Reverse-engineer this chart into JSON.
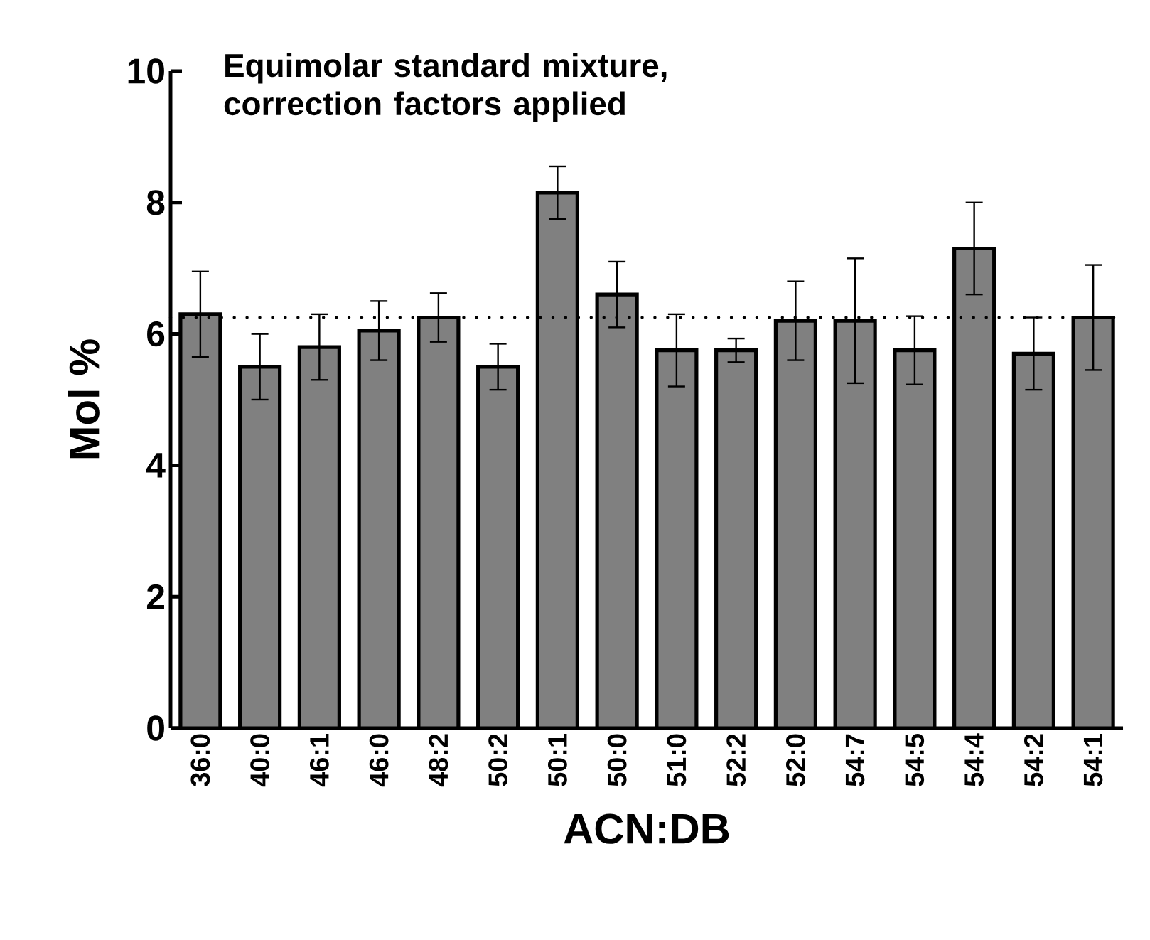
{
  "chart_data": {
    "type": "bar",
    "title": "Equimolar standard mixture,\ncorrection factors applied",
    "xlabel": "ACN:DB",
    "ylabel": "Mol %",
    "categories": [
      "36:0",
      "40:0",
      "46:1",
      "46:0",
      "48:2",
      "50:2",
      "50:1",
      "50:0",
      "51:0",
      "52:2",
      "52:0",
      "54:7",
      "54:5",
      "54:4",
      "54:2",
      "54:1"
    ],
    "values": [
      6.3,
      5.5,
      5.8,
      6.05,
      6.25,
      5.5,
      8.15,
      6.6,
      5.75,
      5.75,
      6.2,
      6.2,
      5.75,
      7.3,
      5.7,
      6.25
    ],
    "errors": [
      0.65,
      0.5,
      0.5,
      0.45,
      0.37,
      0.35,
      0.4,
      0.5,
      0.55,
      0.18,
      0.6,
      0.95,
      0.52,
      0.7,
      0.55,
      0.8
    ],
    "color": "#808080",
    "ylim": [
      0,
      10
    ],
    "yticks": [
      0,
      2,
      4,
      6,
      8,
      10
    ],
    "grid": false,
    "ref_lines": [
      {
        "axis": "y",
        "value": 6.25,
        "line_style": "dotted",
        "color": "#000000"
      }
    ]
  }
}
